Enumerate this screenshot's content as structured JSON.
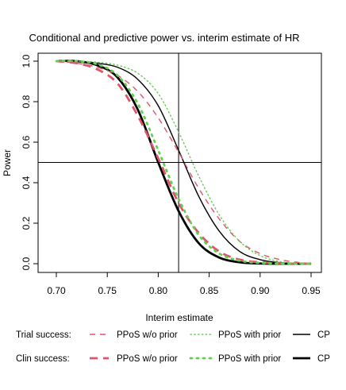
{
  "chart_data": {
    "type": "line",
    "title": "Conditional and predictive power vs. interim estimate of HR",
    "xlabel": "Interim estimate",
    "ylabel": "Power",
    "xlim": [
      0.7,
      0.95
    ],
    "ylim": [
      0.0,
      1.0
    ],
    "xticks": [
      0.7,
      0.75,
      0.8,
      0.85,
      0.9,
      0.95
    ],
    "xtick_labels": [
      "0.70",
      "0.75",
      "0.80",
      "0.85",
      "0.90",
      "0.95"
    ],
    "yticks": [
      0.0,
      0.2,
      0.4,
      0.6,
      0.8,
      1.0
    ],
    "ytick_labels": [
      "0.0",
      "0.2",
      "0.4",
      "0.6",
      "0.8",
      "1.0"
    ],
    "reference_lines": {
      "vertical_x": 0.82,
      "horizontal_y": 0.5
    },
    "grid": false,
    "legend_position": "bottom",
    "legend_rows": [
      {
        "label": "Trial success:",
        "items": [
          "PPoS w/o prior",
          "PPoS with prior",
          "CP"
        ]
      },
      {
        "label": "Clin success:",
        "items": [
          "PPoS w/o prior",
          "PPoS with prior",
          "CP"
        ]
      }
    ],
    "colors": {
      "ppos_without_prior": "#DF536B",
      "ppos_with_prior": "#61D04F",
      "cp": "#000000",
      "axes": "#000000"
    },
    "x": [
      0.7,
      0.72,
      0.74,
      0.76,
      0.78,
      0.8,
      0.82,
      0.84,
      0.86,
      0.88,
      0.9,
      0.92,
      0.94,
      0.95
    ],
    "series": [
      {
        "legend_row": 0,
        "style": "dashed",
        "weight": "thin",
        "color_key": "ppos_without_prior",
        "values": [
          1.0,
          0.99,
          0.97,
          0.93,
          0.85,
          0.72,
          0.55,
          0.37,
          0.22,
          0.11,
          0.05,
          0.02,
          0.005,
          0.003
        ]
      },
      {
        "legend_row": 0,
        "style": "dotted",
        "weight": "thin",
        "color_key": "ppos_with_prior",
        "values": [
          1.0,
          1.0,
          0.995,
          0.98,
          0.94,
          0.84,
          0.65,
          0.43,
          0.24,
          0.11,
          0.04,
          0.01,
          0.002,
          0.001
        ]
      },
      {
        "legend_row": 0,
        "style": "solid",
        "weight": "thin",
        "color_key": "cp",
        "values": [
          1.0,
          1.0,
          0.99,
          0.97,
          0.91,
          0.78,
          0.56,
          0.33,
          0.16,
          0.06,
          0.02,
          0.005,
          0.001,
          0.0
        ]
      },
      {
        "legend_row": 1,
        "style": "dashed",
        "weight": "thick",
        "color_key": "ppos_without_prior",
        "values": [
          1.0,
          0.99,
          0.96,
          0.89,
          0.73,
          0.52,
          0.3,
          0.15,
          0.06,
          0.02,
          0.007,
          0.002,
          0.0,
          0.0
        ]
      },
      {
        "legend_row": 1,
        "style": "dotted",
        "weight": "thick",
        "color_key": "ppos_with_prior",
        "values": [
          1.0,
          1.0,
          0.985,
          0.93,
          0.79,
          0.56,
          0.32,
          0.14,
          0.05,
          0.015,
          0.004,
          0.001,
          0.0,
          0.0
        ]
      },
      {
        "legend_row": 1,
        "style": "solid",
        "weight": "thick",
        "color_key": "cp",
        "values": [
          1.0,
          1.0,
          0.98,
          0.92,
          0.76,
          0.5,
          0.26,
          0.1,
          0.03,
          0.007,
          0.001,
          0.0,
          0.0,
          0.0
        ]
      }
    ]
  }
}
